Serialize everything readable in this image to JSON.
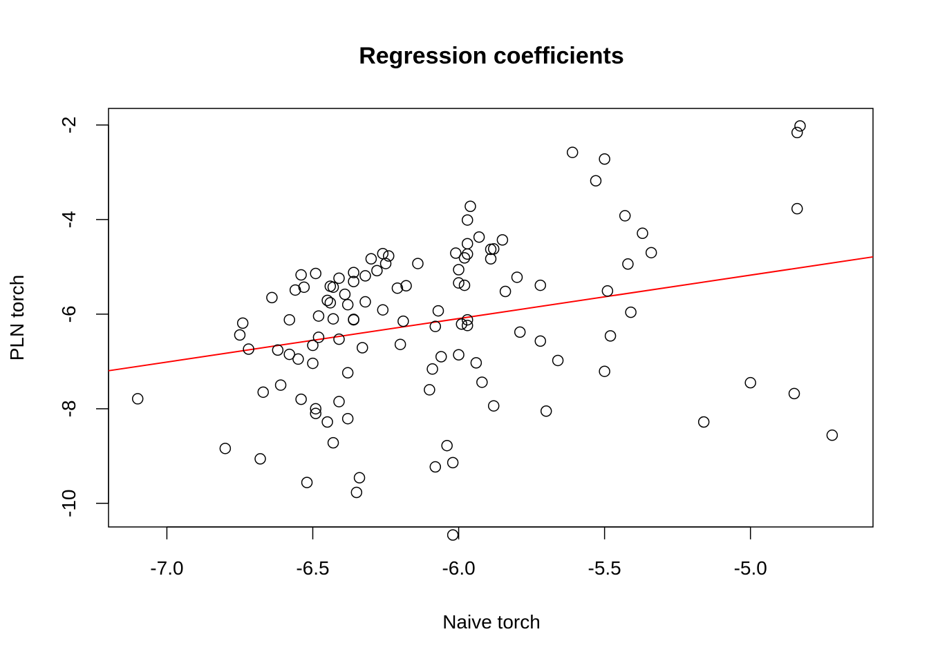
{
  "chart_data": {
    "type": "scatter",
    "title": "Regression coefficients",
    "xlabel": "Naive torch",
    "ylabel": "PLN torch",
    "xlim": [
      -7.2,
      -4.58
    ],
    "ylim": [
      -10.5,
      -1.65
    ],
    "xticks": [
      -7.0,
      -6.5,
      -6.0,
      -5.5,
      -5.0
    ],
    "xtick_labels": [
      "-7.0",
      "-6.5",
      "-6.0",
      "-5.5",
      "-5.0"
    ],
    "yticks": [
      -2,
      -4,
      -6,
      -8,
      -10
    ],
    "ytick_labels": [
      "-2",
      "-4",
      "-6",
      "-8",
      "-10"
    ],
    "grid": false,
    "legend": "none",
    "regression_line": {
      "intercept": -0.58,
      "slope": 0.919,
      "color": "#ff0000"
    },
    "point_color": "#000000",
    "points": [
      [
        -7.1,
        -7.79
      ],
      [
        -6.8,
        -8.84
      ],
      [
        -6.75,
        -6.44
      ],
      [
        -6.74,
        -6.19
      ],
      [
        -6.72,
        -6.74
      ],
      [
        -6.68,
        -9.06
      ],
      [
        -6.67,
        -7.65
      ],
      [
        -6.64,
        -5.65
      ],
      [
        -6.62,
        -6.76
      ],
      [
        -6.61,
        -7.5
      ],
      [
        -6.58,
        -6.12
      ],
      [
        -6.58,
        -6.85
      ],
      [
        -6.56,
        -5.49
      ],
      [
        -6.55,
        -6.95
      ],
      [
        -6.54,
        -5.17
      ],
      [
        -6.54,
        -7.8
      ],
      [
        -6.53,
        -5.43
      ],
      [
        -6.52,
        -9.56
      ],
      [
        -6.5,
        -6.66
      ],
      [
        -6.5,
        -7.04
      ],
      [
        -6.49,
        -5.14
      ],
      [
        -6.49,
        -8.0
      ],
      [
        -6.49,
        -8.1
      ],
      [
        -6.48,
        -6.04
      ],
      [
        -6.48,
        -6.49
      ],
      [
        -6.45,
        -5.71
      ],
      [
        -6.45,
        -8.28
      ],
      [
        -6.44,
        -5.76
      ],
      [
        -6.44,
        -5.41
      ],
      [
        -6.43,
        -6.1
      ],
      [
        -6.43,
        -5.43
      ],
      [
        -6.43,
        -8.72
      ],
      [
        -6.41,
        -5.24
      ],
      [
        -6.41,
        -6.53
      ],
      [
        -6.41,
        -7.85
      ],
      [
        -6.39,
        -5.58
      ],
      [
        -6.38,
        -5.8
      ],
      [
        -6.38,
        -7.24
      ],
      [
        -6.38,
        -8.21
      ],
      [
        -6.36,
        -5.12
      ],
      [
        -6.36,
        -5.31
      ],
      [
        -6.36,
        -6.11
      ],
      [
        -6.36,
        -6.12
      ],
      [
        -6.35,
        -9.77
      ],
      [
        -6.34,
        -9.46
      ],
      [
        -6.33,
        -6.71
      ],
      [
        -6.32,
        -5.74
      ],
      [
        -6.32,
        -5.19
      ],
      [
        -6.3,
        -4.83
      ],
      [
        -6.28,
        -5.08
      ],
      [
        -6.26,
        -4.72
      ],
      [
        -6.26,
        -5.91
      ],
      [
        -6.25,
        -4.93
      ],
      [
        -6.24,
        -4.77
      ],
      [
        -6.21,
        -5.45
      ],
      [
        -6.2,
        -6.64
      ],
      [
        -6.19,
        -6.15
      ],
      [
        -6.18,
        -5.4
      ],
      [
        -6.14,
        -4.93
      ],
      [
        -6.1,
        -7.6
      ],
      [
        -6.09,
        -7.16
      ],
      [
        -6.08,
        -6.26
      ],
      [
        -6.08,
        -9.23
      ],
      [
        -6.07,
        -5.93
      ],
      [
        -6.06,
        -6.9
      ],
      [
        -6.04,
        -8.78
      ],
      [
        -6.02,
        -9.14
      ],
      [
        -6.02,
        -10.67
      ],
      [
        -6.01,
        -4.71
      ],
      [
        -6.0,
        -5.06
      ],
      [
        -6.0,
        -5.34
      ],
      [
        -6.0,
        -6.86
      ],
      [
        -5.99,
        -6.21
      ],
      [
        -5.98,
        -4.81
      ],
      [
        -5.98,
        -5.39
      ],
      [
        -5.97,
        -6.24
      ],
      [
        -5.97,
        -6.12
      ],
      [
        -5.97,
        -4.01
      ],
      [
        -5.97,
        -4.51
      ],
      [
        -5.97,
        -4.73
      ],
      [
        -5.96,
        -3.72
      ],
      [
        -5.94,
        -7.03
      ],
      [
        -5.93,
        -4.37
      ],
      [
        -5.92,
        -7.44
      ],
      [
        -5.89,
        -4.63
      ],
      [
        -5.89,
        -4.83
      ],
      [
        -5.88,
        -4.62
      ],
      [
        -5.88,
        -7.94
      ],
      [
        -5.85,
        -4.43
      ],
      [
        -5.84,
        -5.52
      ],
      [
        -5.8,
        -5.22
      ],
      [
        -5.79,
        -6.38
      ],
      [
        -5.72,
        -5.39
      ],
      [
        -5.72,
        -6.57
      ],
      [
        -5.7,
        -8.05
      ],
      [
        -5.66,
        -6.98
      ],
      [
        -5.61,
        -2.58
      ],
      [
        -5.53,
        -3.18
      ],
      [
        -5.5,
        -2.72
      ],
      [
        -5.5,
        -7.21
      ],
      [
        -5.49,
        -5.51
      ],
      [
        -5.48,
        -6.46
      ],
      [
        -5.43,
        -3.92
      ],
      [
        -5.42,
        -4.94
      ],
      [
        -5.41,
        -5.96
      ],
      [
        -5.37,
        -4.29
      ],
      [
        -5.34,
        -4.7
      ],
      [
        -5.16,
        -8.28
      ],
      [
        -5.0,
        -7.45
      ],
      [
        -4.85,
        -7.68
      ],
      [
        -4.84,
        -2.16
      ],
      [
        -4.83,
        -2.02
      ],
      [
        -4.84,
        -3.77
      ],
      [
        -4.72,
        -8.56
      ]
    ]
  }
}
